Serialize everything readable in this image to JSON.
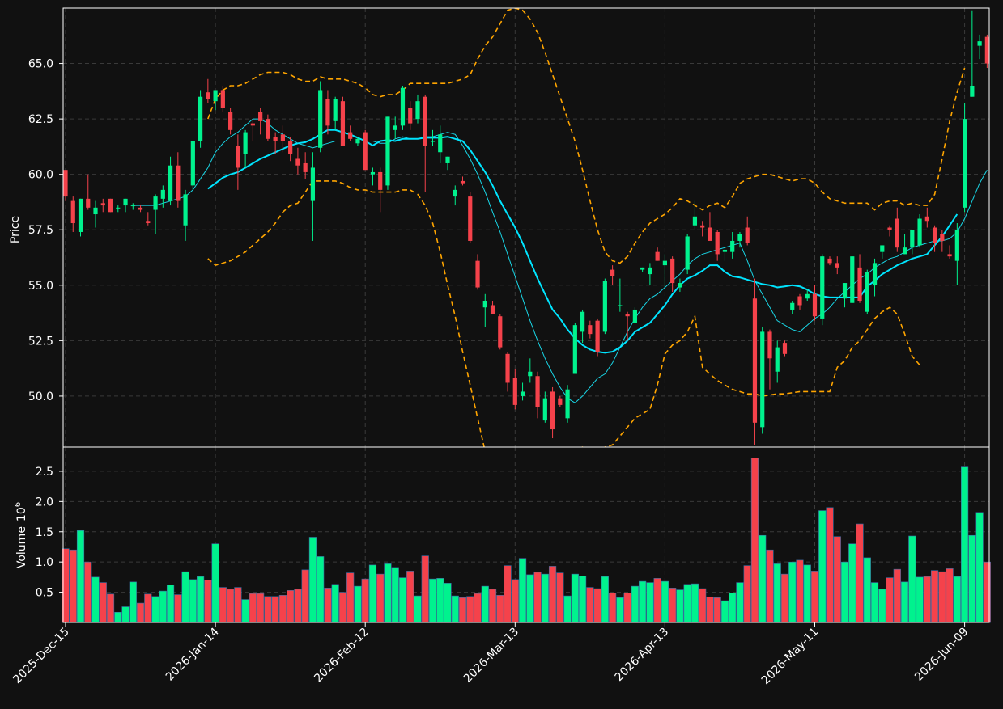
{
  "chart_data": {
    "type": "candlestick",
    "colors": {
      "background": "#111111",
      "up": "#00f28e",
      "down": "#f5424b",
      "ma_thin": "#19d6e6",
      "ma_thick": "#00e5ff",
      "bands": "#ffa500",
      "grid": "#3a3a3a",
      "axes": "#ffffff"
    },
    "price_panel": {
      "ylabel": "Price",
      "ylim": [
        47.7,
        67.5
      ],
      "yticks": [
        "50.0",
        "52.5",
        "55.0",
        "57.5",
        "60.0",
        "62.5",
        "65.0"
      ],
      "grid": true
    },
    "volume_panel": {
      "ylabel": "Volume",
      "exponent": "10",
      "exponent_power": "6",
      "ylim": [
        0,
        2.9
      ],
      "yticks": [
        "0.5",
        "1.0",
        "1.5",
        "2.0",
        "2.5"
      ],
      "grid": true
    },
    "x_axis": {
      "tick_labels": [
        "2025-Dec-15",
        "2026-Jan-14",
        "2026-Feb-12",
        "2026-Mar-13",
        "2026-Apr-13",
        "2026-May-11",
        "2026-Jun-09"
      ],
      "tick_positions": [
        0,
        20,
        40,
        60,
        80,
        100,
        120
      ]
    },
    "candles": [
      {
        "o": 60.2,
        "h": 60.2,
        "l": 58.8,
        "c": 59.0
      },
      {
        "o": 58.8,
        "h": 59.0,
        "l": 57.4,
        "c": 57.8
      },
      {
        "o": 57.4,
        "h": 58.9,
        "l": 57.2,
        "c": 58.9
      },
      {
        "o": 58.9,
        "h": 60.0,
        "l": 58.4,
        "c": 58.5
      },
      {
        "o": 58.2,
        "h": 58.8,
        "l": 57.6,
        "c": 58.5
      },
      {
        "o": 58.7,
        "h": 58.9,
        "l": 58.3,
        "c": 58.6
      },
      {
        "o": 58.9,
        "h": 58.9,
        "l": 58.3,
        "c": 58.3
      },
      {
        "o": 58.5,
        "h": 58.6,
        "l": 58.3,
        "c": 58.5
      },
      {
        "o": 58.6,
        "h": 58.9,
        "l": 58.3,
        "c": 58.9
      },
      {
        "o": 58.6,
        "h": 58.7,
        "l": 58.4,
        "c": 58.6
      },
      {
        "o": 58.5,
        "h": 58.6,
        "l": 58.3,
        "c": 58.4
      },
      {
        "o": 57.9,
        "h": 58.3,
        "l": 57.7,
        "c": 57.8
      },
      {
        "o": 58.4,
        "h": 59.1,
        "l": 57.3,
        "c": 59.0
      },
      {
        "o": 58.9,
        "h": 59.5,
        "l": 58.5,
        "c": 59.3
      },
      {
        "o": 58.8,
        "h": 60.8,
        "l": 58.6,
        "c": 60.4
      },
      {
        "o": 60.4,
        "h": 61.0,
        "l": 58.5,
        "c": 58.8
      },
      {
        "o": 57.7,
        "h": 59.3,
        "l": 57.0,
        "c": 59.1
      },
      {
        "o": 59.5,
        "h": 61.5,
        "l": 59.3,
        "c": 61.5
      },
      {
        "o": 61.5,
        "h": 63.8,
        "l": 61.2,
        "c": 63.5
      },
      {
        "o": 63.7,
        "h": 64.3,
        "l": 63.2,
        "c": 63.4
      },
      {
        "o": 63.3,
        "h": 63.8,
        "l": 62.9,
        "c": 63.8
      },
      {
        "o": 63.8,
        "h": 64.0,
        "l": 62.8,
        "c": 63.0
      },
      {
        "o": 62.8,
        "h": 63.0,
        "l": 61.8,
        "c": 62.0
      },
      {
        "o": 61.3,
        "h": 61.8,
        "l": 59.3,
        "c": 60.3
      },
      {
        "o": 60.9,
        "h": 62.0,
        "l": 60.3,
        "c": 61.9
      },
      {
        "o": 62.3,
        "h": 62.5,
        "l": 61.5,
        "c": 62.2
      },
      {
        "o": 62.8,
        "h": 63.0,
        "l": 61.8,
        "c": 62.4
      },
      {
        "o": 62.5,
        "h": 62.7,
        "l": 61.5,
        "c": 61.6
      },
      {
        "o": 61.7,
        "h": 61.9,
        "l": 60.9,
        "c": 61.5
      },
      {
        "o": 61.8,
        "h": 62.2,
        "l": 61.0,
        "c": 61.5
      },
      {
        "o": 61.5,
        "h": 61.7,
        "l": 60.6,
        "c": 60.9
      },
      {
        "o": 60.7,
        "h": 61.2,
        "l": 60.0,
        "c": 60.4
      },
      {
        "o": 60.5,
        "h": 61.0,
        "l": 59.8,
        "c": 60.1
      },
      {
        "o": 58.8,
        "h": 61.0,
        "l": 57.0,
        "c": 60.3
      },
      {
        "o": 61.2,
        "h": 64.2,
        "l": 61.0,
        "c": 63.8
      },
      {
        "o": 63.4,
        "h": 63.8,
        "l": 61.8,
        "c": 62.2
      },
      {
        "o": 62.4,
        "h": 63.5,
        "l": 62.0,
        "c": 63.4
      },
      {
        "o": 63.3,
        "h": 63.5,
        "l": 61.3,
        "c": 61.3
      },
      {
        "o": 61.9,
        "h": 62.2,
        "l": 61.5,
        "c": 61.6
      },
      {
        "o": 61.4,
        "h": 61.7,
        "l": 61.3,
        "c": 61.6
      },
      {
        "o": 61.9,
        "h": 62.0,
        "l": 60.2,
        "c": 60.2
      },
      {
        "o": 60.0,
        "h": 60.3,
        "l": 59.5,
        "c": 60.1
      },
      {
        "o": 60.1,
        "h": 60.3,
        "l": 58.3,
        "c": 59.3
      },
      {
        "o": 59.5,
        "h": 62.6,
        "l": 59.3,
        "c": 62.6
      },
      {
        "o": 62.0,
        "h": 62.6,
        "l": 61.6,
        "c": 62.2
      },
      {
        "o": 62.2,
        "h": 64.0,
        "l": 62.0,
        "c": 63.9
      },
      {
        "o": 63.0,
        "h": 63.3,
        "l": 62.0,
        "c": 62.3
      },
      {
        "o": 62.5,
        "h": 63.6,
        "l": 62.3,
        "c": 63.3
      },
      {
        "o": 63.5,
        "h": 63.6,
        "l": 59.2,
        "c": 61.3
      },
      {
        "o": 61.5,
        "h": 62.0,
        "l": 61.3,
        "c": 61.5
      },
      {
        "o": 61.0,
        "h": 62.2,
        "l": 60.5,
        "c": 61.8
      },
      {
        "o": 60.5,
        "h": 60.8,
        "l": 60.2,
        "c": 60.8
      },
      {
        "o": 59.0,
        "h": 59.5,
        "l": 58.6,
        "c": 59.3
      },
      {
        "o": 59.7,
        "h": 59.9,
        "l": 59.5,
        "c": 59.6
      },
      {
        "o": 59.0,
        "h": 59.2,
        "l": 56.9,
        "c": 57.0
      },
      {
        "o": 56.1,
        "h": 56.4,
        "l": 54.8,
        "c": 54.9
      },
      {
        "o": 54.0,
        "h": 54.6,
        "l": 53.1,
        "c": 54.3
      },
      {
        "o": 54.1,
        "h": 54.3,
        "l": 53.7,
        "c": 53.7
      },
      {
        "o": 53.6,
        "h": 53.7,
        "l": 52.1,
        "c": 52.2
      },
      {
        "o": 51.9,
        "h": 52.0,
        "l": 50.2,
        "c": 50.6
      },
      {
        "o": 50.8,
        "h": 51.2,
        "l": 49.4,
        "c": 49.6
      },
      {
        "o": 50.0,
        "h": 50.6,
        "l": 49.8,
        "c": 50.2
      },
      {
        "o": 50.9,
        "h": 51.7,
        "l": 50.6,
        "c": 51.1
      },
      {
        "o": 50.9,
        "h": 51.1,
        "l": 49.0,
        "c": 49.5
      },
      {
        "o": 48.9,
        "h": 50.2,
        "l": 48.8,
        "c": 49.9
      },
      {
        "o": 50.2,
        "h": 50.4,
        "l": 48.1,
        "c": 48.5
      },
      {
        "o": 49.9,
        "h": 50.0,
        "l": 49.5,
        "c": 49.6
      },
      {
        "o": 49.0,
        "h": 50.5,
        "l": 48.8,
        "c": 50.3
      },
      {
        "o": 51.0,
        "h": 53.3,
        "l": 51.0,
        "c": 53.2
      },
      {
        "o": 52.9,
        "h": 53.9,
        "l": 52.4,
        "c": 53.8
      },
      {
        "o": 53.2,
        "h": 53.4,
        "l": 52.6,
        "c": 52.8
      },
      {
        "o": 53.4,
        "h": 53.5,
        "l": 51.8,
        "c": 52.0
      },
      {
        "o": 52.9,
        "h": 55.3,
        "l": 52.8,
        "c": 55.2
      },
      {
        "o": 55.7,
        "h": 55.9,
        "l": 55.0,
        "c": 55.4
      },
      {
        "o": 54.1,
        "h": 55.3,
        "l": 53.8,
        "c": 54.1
      },
      {
        "o": 53.7,
        "h": 53.8,
        "l": 52.5,
        "c": 53.6
      },
      {
        "o": 53.3,
        "h": 54.0,
        "l": 53.3,
        "c": 53.9
      },
      {
        "o": 55.7,
        "h": 55.8,
        "l": 55.6,
        "c": 55.8
      },
      {
        "o": 55.5,
        "h": 56.0,
        "l": 55.0,
        "c": 55.8
      },
      {
        "o": 56.5,
        "h": 56.7,
        "l": 56.1,
        "c": 56.1
      },
      {
        "o": 55.9,
        "h": 56.4,
        "l": 54.9,
        "c": 56.1
      },
      {
        "o": 56.2,
        "h": 56.3,
        "l": 54.7,
        "c": 55.1
      },
      {
        "o": 54.9,
        "h": 55.3,
        "l": 54.7,
        "c": 55.1
      },
      {
        "o": 55.7,
        "h": 57.3,
        "l": 55.5,
        "c": 57.2
      },
      {
        "o": 57.7,
        "h": 58.8,
        "l": 57.5,
        "c": 58.1
      },
      {
        "o": 57.7,
        "h": 57.9,
        "l": 57.2,
        "c": 57.6
      },
      {
        "o": 57.6,
        "h": 58.3,
        "l": 57.1,
        "c": 57.0
      },
      {
        "o": 57.4,
        "h": 57.5,
        "l": 56.1,
        "c": 56.4
      },
      {
        "o": 56.5,
        "h": 56.7,
        "l": 56.1,
        "c": 56.6
      },
      {
        "o": 56.5,
        "h": 57.4,
        "l": 56.2,
        "c": 57.0
      },
      {
        "o": 57.0,
        "h": 57.4,
        "l": 56.7,
        "c": 57.3
      },
      {
        "o": 57.6,
        "h": 58.1,
        "l": 56.8,
        "c": 56.9
      },
      {
        "o": 54.4,
        "h": 55.3,
        "l": 47.8,
        "c": 48.8
      },
      {
        "o": 48.6,
        "h": 53.1,
        "l": 48.3,
        "c": 52.9
      },
      {
        "o": 52.9,
        "h": 53.0,
        "l": 50.3,
        "c": 51.7
      },
      {
        "o": 51.1,
        "h": 52.5,
        "l": 50.6,
        "c": 52.2
      },
      {
        "o": 52.4,
        "h": 52.5,
        "l": 51.8,
        "c": 51.9
      },
      {
        "o": 53.9,
        "h": 54.3,
        "l": 53.7,
        "c": 54.2
      },
      {
        "o": 54.5,
        "h": 54.6,
        "l": 53.9,
        "c": 54.1
      },
      {
        "o": 54.4,
        "h": 54.8,
        "l": 54.3,
        "c": 54.6
      },
      {
        "o": 54.6,
        "h": 55.0,
        "l": 53.4,
        "c": 53.6
      },
      {
        "o": 53.5,
        "h": 56.4,
        "l": 53.2,
        "c": 56.3
      },
      {
        "o": 56.2,
        "h": 56.3,
        "l": 55.9,
        "c": 56.0
      },
      {
        "o": 56.0,
        "h": 56.3,
        "l": 55.5,
        "c": 55.8
      },
      {
        "o": 54.4,
        "h": 55.1,
        "l": 54.0,
        "c": 55.1
      },
      {
        "o": 54.2,
        "h": 56.3,
        "l": 54.2,
        "c": 56.3
      },
      {
        "o": 55.8,
        "h": 56.4,
        "l": 54.2,
        "c": 54.3
      },
      {
        "o": 53.8,
        "h": 55.7,
        "l": 53.7,
        "c": 55.6
      },
      {
        "o": 55.0,
        "h": 56.2,
        "l": 54.5,
        "c": 56.0
      },
      {
        "o": 56.5,
        "h": 56.8,
        "l": 56.2,
        "c": 56.8
      },
      {
        "o": 57.6,
        "h": 57.7,
        "l": 57.2,
        "c": 57.5
      },
      {
        "o": 58.0,
        "h": 58.5,
        "l": 56.5,
        "c": 56.7
      },
      {
        "o": 56.4,
        "h": 57.3,
        "l": 56.4,
        "c": 56.7
      },
      {
        "o": 56.7,
        "h": 57.5,
        "l": 56.4,
        "c": 57.5
      },
      {
        "o": 56.8,
        "h": 58.2,
        "l": 56.7,
        "c": 58.0
      },
      {
        "o": 58.1,
        "h": 58.5,
        "l": 57.6,
        "c": 57.9
      },
      {
        "o": 57.6,
        "h": 57.7,
        "l": 56.5,
        "c": 56.9
      },
      {
        "o": 57.3,
        "h": 57.5,
        "l": 56.5,
        "c": 57.0
      },
      {
        "o": 56.4,
        "h": 56.8,
        "l": 56.2,
        "c": 56.3
      },
      {
        "o": 56.1,
        "h": 57.8,
        "l": 55.0,
        "c": 57.5
      },
      {
        "o": 58.5,
        "h": 63.2,
        "l": 58.3,
        "c": 62.5
      },
      {
        "o": 63.5,
        "h": 67.4,
        "l": 63.5,
        "c": 64.0
      },
      {
        "o": 65.8,
        "h": 66.3,
        "l": 65.2,
        "c": 66.0
      },
      {
        "o": 66.2,
        "h": 66.3,
        "l": 64.8,
        "c": 65.0
      }
    ],
    "volume": [
      1.22,
      1.2,
      1.52,
      1.0,
      0.75,
      0.66,
      0.47,
      0.17,
      0.26,
      0.67,
      0.32,
      0.47,
      0.43,
      0.52,
      0.62,
      0.46,
      0.84,
      0.71,
      0.76,
      0.7,
      1.3,
      0.58,
      0.55,
      0.58,
      0.38,
      0.48,
      0.48,
      0.43,
      0.43,
      0.45,
      0.53,
      0.55,
      0.87,
      1.41,
      1.09,
      0.57,
      0.63,
      0.5,
      0.82,
      0.6,
      0.72,
      0.95,
      0.8,
      0.97,
      0.91,
      0.74,
      0.85,
      0.44,
      1.1,
      0.72,
      0.73,
      0.65,
      0.44,
      0.41,
      0.43,
      0.48,
      0.6,
      0.55,
      0.45,
      0.94,
      0.71,
      1.06,
      0.79,
      0.83,
      0.8,
      0.93,
      0.82,
      0.44,
      0.8,
      0.77,
      0.58,
      0.56,
      0.76,
      0.49,
      0.41,
      0.49,
      0.6,
      0.68,
      0.66,
      0.73,
      0.68,
      0.57,
      0.54,
      0.63,
      0.64,
      0.56,
      0.42,
      0.41,
      0.36,
      0.49,
      0.66,
      0.94,
      2.72,
      1.44,
      1.2,
      0.97,
      0.8,
      1.0,
      1.03,
      0.95,
      0.85,
      1.85,
      1.9,
      1.42,
      1.0,
      1.3,
      1.63,
      1.07,
      0.66,
      0.55,
      0.74,
      0.88,
      0.67,
      1.43,
      0.75,
      0.76,
      0.86,
      0.84,
      0.89,
      0.76,
      2.57,
      1.44,
      1.82,
      1.0
    ],
    "ma_thin": [
      null,
      null,
      null,
      null,
      null,
      null,
      null,
      null,
      null,
      58.6,
      58.6,
      58.6,
      58.6,
      58.7,
      58.8,
      58.9,
      59.0,
      59.3,
      59.8,
      60.3,
      61.0,
      61.4,
      61.7,
      61.9,
      62.2,
      62.5,
      62.5,
      62.3,
      62.0,
      61.8,
      61.6,
      61.4,
      61.3,
      61.2,
      61.3,
      61.4,
      61.5,
      61.5,
      61.5,
      61.5,
      61.5,
      61.5,
      61.4,
      61.4,
      61.6,
      61.7,
      61.6,
      61.6,
      61.7,
      61.7,
      61.8,
      61.9,
      61.8,
      61.3,
      60.7,
      60.0,
      59.2,
      58.3,
      57.4,
      56.4,
      55.4,
      54.4,
      53.4,
      52.5,
      51.7,
      51.0,
      50.4,
      49.9,
      49.7,
      50.0,
      50.4,
      50.8,
      51.0,
      51.5,
      52.2,
      52.9,
      53.5,
      54.0,
      54.4,
      54.6,
      54.9,
      55.2,
      55.5,
      55.9,
      56.2,
      56.4,
      56.5,
      56.6,
      56.7,
      56.8,
      56.9,
      56.1,
      55.2,
      54.6,
      54.0,
      53.4,
      53.2,
      53.0,
      52.9,
      53.2,
      53.5,
      53.7,
      54.0,
      54.4,
      54.7,
      55.0,
      55.3,
      55.5,
      55.8,
      56.0,
      56.2,
      56.3,
      56.5,
      56.7,
      56.8,
      56.9,
      57.0,
      57.0,
      57.1,
      57.4,
      58.0,
      58.8,
      59.6,
      60.2
    ],
    "ma_thick": [
      null,
      null,
      null,
      null,
      null,
      null,
      null,
      null,
      null,
      null,
      null,
      null,
      null,
      null,
      null,
      null,
      null,
      null,
      null,
      59.35,
      59.6,
      59.85,
      60.0,
      60.1,
      60.3,
      60.5,
      60.7,
      60.85,
      61.0,
      61.15,
      61.3,
      61.4,
      61.45,
      61.6,
      61.8,
      62.0,
      62.0,
      61.9,
      61.8,
      61.65,
      61.5,
      61.3,
      61.5,
      61.55,
      61.5,
      61.6,
      61.6,
      61.6,
      61.65,
      61.65,
      61.65,
      61.7,
      61.6,
      61.5,
      61.1,
      60.6,
      60.1,
      59.5,
      58.8,
      58.2,
      57.6,
      56.9,
      56.1,
      55.3,
      54.6,
      53.9,
      53.5,
      53.0,
      52.6,
      52.3,
      52.1,
      52.0,
      51.95,
      52.0,
      52.2,
      52.5,
      52.9,
      53.1,
      53.3,
      53.7,
      54.1,
      54.6,
      55.0,
      55.3,
      55.45,
      55.65,
      55.9,
      55.9,
      55.6,
      55.4,
      55.35,
      55.25,
      55.15,
      55.05,
      55.0,
      54.9,
      54.95,
      55.0,
      54.95,
      54.8,
      54.6,
      54.5,
      54.45,
      54.45,
      54.45,
      54.45,
      54.45,
      54.95,
      55.2,
      55.5,
      55.7,
      55.9,
      56.05,
      56.2,
      56.3,
      56.4,
      56.8,
      57.2,
      57.7,
      58.2
    ],
    "band_upper": [
      null,
      null,
      null,
      null,
      null,
      null,
      null,
      null,
      null,
      null,
      null,
      null,
      null,
      null,
      null,
      null,
      null,
      null,
      null,
      62.5,
      63.4,
      63.8,
      64.0,
      64.0,
      64.1,
      64.3,
      64.5,
      64.6,
      64.6,
      64.6,
      64.5,
      64.3,
      64.2,
      64.2,
      64.4,
      64.3,
      64.3,
      64.3,
      64.2,
      64.1,
      63.9,
      63.6,
      63.5,
      63.6,
      63.6,
      63.8,
      64.1,
      64.1,
      64.1,
      64.1,
      64.1,
      64.1,
      64.2,
      64.3,
      64.5,
      65.2,
      65.8,
      66.2,
      66.8,
      67.4,
      67.5,
      67.4,
      67.0,
      66.4,
      65.5,
      64.5,
      63.5,
      62.5,
      61.5,
      60.2,
      58.8,
      57.5,
      56.5,
      56.1,
      56.0,
      56.3,
      56.9,
      57.4,
      57.8,
      58.0,
      58.2,
      58.5,
      58.9,
      58.8,
      58.6,
      58.4,
      58.6,
      58.7,
      58.5,
      59.0,
      59.6,
      59.8,
      59.9,
      60.0,
      60.0,
      59.9,
      59.8,
      59.7,
      59.8,
      59.8,
      59.6,
      59.2,
      58.9,
      58.8,
      58.7,
      58.7,
      58.7,
      58.7,
      58.4,
      58.7,
      58.8,
      58.8,
      58.6,
      58.7,
      58.6,
      58.6,
      59.1,
      60.7,
      62.4,
      63.7,
      64.8
    ],
    "band_lower": [
      null,
      null,
      null,
      null,
      null,
      null,
      null,
      null,
      null,
      null,
      null,
      null,
      null,
      null,
      null,
      null,
      null,
      null,
      null,
      56.2,
      55.9,
      56.0,
      56.1,
      56.3,
      56.5,
      56.8,
      57.1,
      57.4,
      57.8,
      58.3,
      58.6,
      58.7,
      59.2,
      59.7,
      59.7,
      59.7,
      59.7,
      59.6,
      59.4,
      59.3,
      59.3,
      59.2,
      59.2,
      59.2,
      59.2,
      59.3,
      59.3,
      59.1,
      58.6,
      57.8,
      56.5,
      55.0,
      53.6,
      52.0,
      50.5,
      49.0,
      47.5,
      46.0,
      44.7,
      43.5,
      42.8,
      42.5,
      42.7,
      43.2,
      44.0,
      44.9,
      45.9,
      47.0,
      47.6,
      47.7,
      47.5,
      47.5,
      47.7,
      47.8,
      48.2,
      48.6,
      49.0,
      49.2,
      49.4,
      50.5,
      51.9,
      52.3,
      52.5,
      52.9,
      53.6,
      51.3,
      51.0,
      50.7,
      50.5,
      50.3,
      50.2,
      50.1,
      50.1,
      50.0,
      50.05,
      50.1,
      50.1,
      50.15,
      50.2,
      50.2,
      50.2,
      50.2,
      50.2,
      51.3,
      51.6,
      52.2,
      52.5,
      53.0,
      53.5,
      53.8,
      54.0,
      53.7,
      52.8,
      51.8,
      51.4
    ]
  }
}
